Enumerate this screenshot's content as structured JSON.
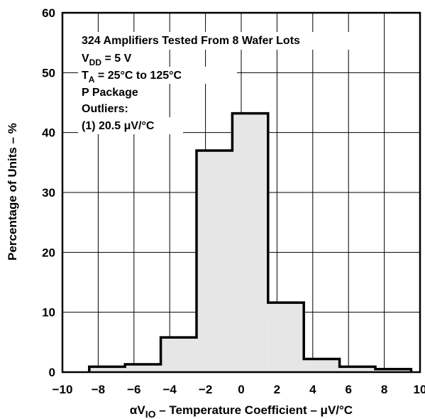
{
  "chart_data": {
    "type": "bar",
    "subtype": "histogram",
    "xlabel": {
      "prefix": "αV",
      "sub": "IO",
      "suffix": " – Temperature Coefficient – μV/°C"
    },
    "ylabel": "Percentage of Units – %",
    "xlim": [
      -10,
      10
    ],
    "ylim": [
      0,
      60
    ],
    "xticks": [
      "−10",
      "−8",
      "−6",
      "−4",
      "−2",
      "0",
      "2",
      "4",
      "6",
      "8",
      "10"
    ],
    "xtick_values": [
      -10,
      -8,
      -6,
      -4,
      -2,
      0,
      2,
      4,
      6,
      8,
      10
    ],
    "yticks": [
      "0",
      "10",
      "20",
      "30",
      "40",
      "50",
      "60"
    ],
    "ytick_values": [
      0,
      10,
      20,
      30,
      40,
      50,
      60
    ],
    "grid": true,
    "bins": [
      {
        "x0": -8.5,
        "x1": -6.5,
        "value": 0.9
      },
      {
        "x0": -6.5,
        "x1": -4.5,
        "value": 1.3
      },
      {
        "x0": -4.5,
        "x1": -2.5,
        "value": 5.8
      },
      {
        "x0": -2.5,
        "x1": -0.5,
        "value": 37.0
      },
      {
        "x0": -0.5,
        "x1": 1.5,
        "value": 43.2
      },
      {
        "x0": 1.5,
        "x1": 3.5,
        "value": 11.6
      },
      {
        "x0": 3.5,
        "x1": 5.5,
        "value": 2.2
      },
      {
        "x0": 5.5,
        "x1": 7.5,
        "value": 0.9
      },
      {
        "x0": 7.5,
        "x1": 9.5,
        "value": 0.5
      }
    ],
    "fill_color": "#e6e6e6",
    "annotation": {
      "line1": "324 Amplifiers Tested From 8 Wafer Lots",
      "line2_main": "V",
      "line2_sub": "DD",
      "line2_rest": " = 5 V",
      "line3_main": "T",
      "line3_sub": "A",
      "line3_rest": " = 25°C to 125°C",
      "line4": "P Package",
      "line5": "Outliers:",
      "line6": "(1) 20.5 μV/°C"
    }
  }
}
